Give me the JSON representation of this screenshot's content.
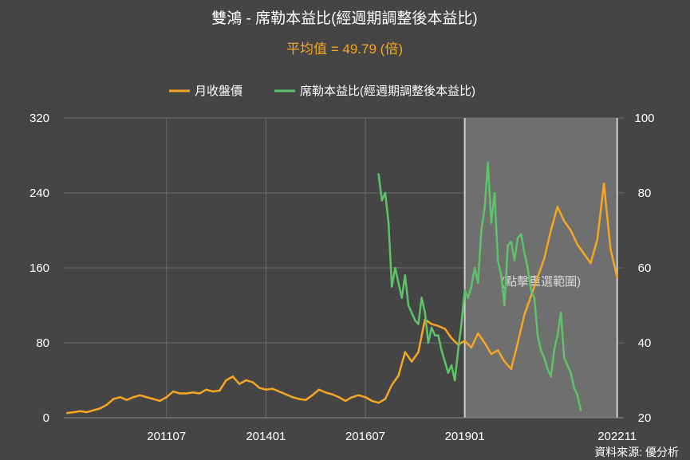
{
  "chart_data": {
    "type": "line",
    "title": "雙鴻 - 席勒本益比(經週期調整後本益比)",
    "subtitle": "平均值 = 49.79 (倍)",
    "source": "資料來源: 優分析",
    "zoom_hint": "(點擊重選範圍)",
    "x_tick_labels": [
      "201107",
      "201401",
      "201607",
      "201901",
      "202211"
    ],
    "y_left_ticks": [
      "0",
      "80",
      "160",
      "240",
      "320"
    ],
    "y_right_ticks": [
      "20",
      "40",
      "60",
      "80",
      "100"
    ],
    "y_left_range": [
      0,
      320
    ],
    "y_right_range": [
      20,
      100
    ],
    "x_range": [
      "2008-12",
      "2023-01"
    ],
    "selected_range": [
      "2019-01",
      "2022-11"
    ],
    "grid": true,
    "legend_position": "top",
    "colors": {
      "price": "#f5a623",
      "cape": "#5ec26a",
      "background": "#454545",
      "selection": "#777777"
    },
    "series": [
      {
        "name": "月收盤價",
        "axis": "left",
        "color": "#f5a623",
        "points": [
          [
            "2009-01",
            5
          ],
          [
            "2009-03",
            6
          ],
          [
            "2009-05",
            7
          ],
          [
            "2009-07",
            6
          ],
          [
            "2009-09",
            8
          ],
          [
            "2009-11",
            10
          ],
          [
            "2010-01",
            14
          ],
          [
            "2010-03",
            20
          ],
          [
            "2010-05",
            22
          ],
          [
            "2010-07",
            19
          ],
          [
            "2010-09",
            22
          ],
          [
            "2010-11",
            24
          ],
          [
            "2011-01",
            22
          ],
          [
            "2011-03",
            20
          ],
          [
            "2011-05",
            18
          ],
          [
            "2011-07",
            22
          ],
          [
            "2011-09",
            28
          ],
          [
            "2011-11",
            26
          ],
          [
            "2012-01",
            26
          ],
          [
            "2012-03",
            27
          ],
          [
            "2012-05",
            26
          ],
          [
            "2012-07",
            30
          ],
          [
            "2012-09",
            28
          ],
          [
            "2012-11",
            29
          ],
          [
            "2013-01",
            40
          ],
          [
            "2013-03",
            44
          ],
          [
            "2013-05",
            36
          ],
          [
            "2013-07",
            40
          ],
          [
            "2013-09",
            38
          ],
          [
            "2013-11",
            32
          ],
          [
            "2014-01",
            30
          ],
          [
            "2014-03",
            31
          ],
          [
            "2014-05",
            28
          ],
          [
            "2014-07",
            25
          ],
          [
            "2014-09",
            22
          ],
          [
            "2014-11",
            20
          ],
          [
            "2015-01",
            19
          ],
          [
            "2015-03",
            24
          ],
          [
            "2015-05",
            30
          ],
          [
            "2015-07",
            27
          ],
          [
            "2015-09",
            25
          ],
          [
            "2015-11",
            22
          ],
          [
            "2016-01",
            18
          ],
          [
            "2016-03",
            22
          ],
          [
            "2016-05",
            24
          ],
          [
            "2016-07",
            22
          ],
          [
            "2016-09",
            18
          ],
          [
            "2016-11",
            16
          ],
          [
            "2017-01",
            20
          ],
          [
            "2017-03",
            35
          ],
          [
            "2017-05",
            45
          ],
          [
            "2017-07",
            70
          ],
          [
            "2017-09",
            60
          ],
          [
            "2017-11",
            70
          ],
          [
            "2018-01",
            105
          ],
          [
            "2018-03",
            100
          ],
          [
            "2018-05",
            98
          ],
          [
            "2018-07",
            95
          ],
          [
            "2018-09",
            85
          ],
          [
            "2018-11",
            78
          ],
          [
            "2019-01",
            82
          ],
          [
            "2019-03",
            75
          ],
          [
            "2019-05",
            90
          ],
          [
            "2019-07",
            80
          ],
          [
            "2019-09",
            68
          ],
          [
            "2019-11",
            72
          ],
          [
            "2020-01",
            60
          ],
          [
            "2020-03",
            52
          ],
          [
            "2020-05",
            80
          ],
          [
            "2020-07",
            110
          ],
          [
            "2020-09",
            130
          ],
          [
            "2020-11",
            150
          ],
          [
            "2021-01",
            170
          ],
          [
            "2021-03",
            200
          ],
          [
            "2021-05",
            225
          ],
          [
            "2021-07",
            210
          ],
          [
            "2021-09",
            200
          ],
          [
            "2021-11",
            185
          ],
          [
            "2022-01",
            175
          ],
          [
            "2022-03",
            165
          ],
          [
            "2022-05",
            190
          ],
          [
            "2022-07",
            250
          ],
          [
            "2022-09",
            180
          ],
          [
            "2022-11",
            150
          ]
        ]
      },
      {
        "name": "席勒本益比(經週期調整後本益比)",
        "axis": "right",
        "color": "#5ec26a",
        "points": [
          [
            "2016-11",
            85
          ],
          [
            "2016-12",
            78
          ],
          [
            "2017-01",
            80
          ],
          [
            "2017-02",
            72
          ],
          [
            "2017-03",
            55
          ],
          [
            "2017-04",
            60
          ],
          [
            "2017-05",
            56
          ],
          [
            "2017-06",
            52
          ],
          [
            "2017-07",
            58
          ],
          [
            "2017-08",
            50
          ],
          [
            "2017-09",
            48
          ],
          [
            "2017-10",
            46
          ],
          [
            "2017-11",
            45
          ],
          [
            "2017-12",
            52
          ],
          [
            "2018-01",
            48
          ],
          [
            "2018-02",
            40
          ],
          [
            "2018-03",
            44
          ],
          [
            "2018-04",
            42
          ],
          [
            "2018-05",
            42
          ],
          [
            "2018-06",
            38
          ],
          [
            "2018-07",
            35
          ],
          [
            "2018-08",
            32
          ],
          [
            "2018-09",
            34
          ],
          [
            "2018-10",
            30
          ],
          [
            "2018-11",
            38
          ],
          [
            "2018-12",
            45
          ],
          [
            "2019-01",
            54
          ],
          [
            "2019-02",
            52
          ],
          [
            "2019-03",
            55
          ],
          [
            "2019-04",
            60
          ],
          [
            "2019-05",
            56
          ],
          [
            "2019-06",
            70
          ],
          [
            "2019-07",
            76
          ],
          [
            "2019-08",
            88
          ],
          [
            "2019-09",
            72
          ],
          [
            "2019-10",
            80
          ],
          [
            "2019-11",
            62
          ],
          [
            "2019-12",
            58
          ],
          [
            "2020-01",
            50
          ],
          [
            "2020-02",
            66
          ],
          [
            "2020-03",
            67
          ],
          [
            "2020-04",
            62
          ],
          [
            "2020-05",
            68
          ],
          [
            "2020-06",
            69
          ],
          [
            "2020-07",
            64
          ],
          [
            "2020-08",
            60
          ],
          [
            "2020-09",
            54
          ],
          [
            "2020-10",
            52
          ],
          [
            "2020-11",
            42
          ],
          [
            "2020-12",
            38
          ],
          [
            "2021-01",
            36
          ],
          [
            "2021-02",
            33
          ],
          [
            "2021-03",
            31
          ],
          [
            "2021-04",
            38
          ],
          [
            "2021-05",
            42
          ],
          [
            "2021-06",
            48
          ],
          [
            "2021-07",
            36
          ],
          [
            "2021-08",
            34
          ],
          [
            "2021-09",
            32
          ],
          [
            "2021-10",
            28
          ],
          [
            "2021-11",
            26
          ],
          [
            "2021-12",
            22
          ]
        ]
      }
    ]
  }
}
